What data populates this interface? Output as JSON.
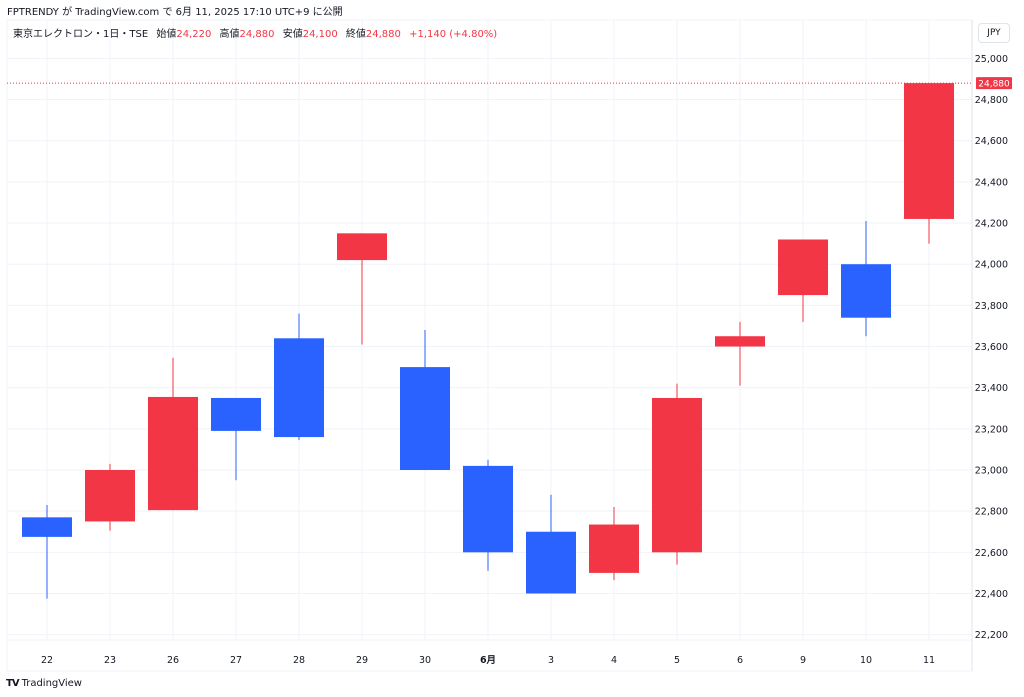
{
  "header": {
    "published": "FPTRENDY が TradingView.com で 6月 11, 2025 17:10 UTC+9 に公開"
  },
  "legend": {
    "symbol": "東京エレクトロン・1日・TSE",
    "open_label": "始値",
    "open": "24,220",
    "high_label": "高値",
    "high": "24,880",
    "low_label": "安値",
    "low": "24,100",
    "close_label": "終値",
    "close": "24,880",
    "change": "+1,140 (+4.80%)"
  },
  "currency": "JPY",
  "brand": {
    "logo": "TV",
    "name": "TradingView"
  },
  "chart_data": {
    "type": "candlestick",
    "categories": [
      "22",
      "23",
      "26",
      "27",
      "28",
      "29",
      "30",
      "6月",
      "3",
      "4",
      "5",
      "6",
      "9",
      "10",
      "11"
    ],
    "series": [
      {
        "open": [
          22770,
          22750,
          22805,
          23350,
          23640,
          24020,
          23500,
          23020,
          22700,
          22500,
          22600,
          23600,
          23850,
          24000,
          24220
        ],
        "high": [
          22830,
          23030,
          23545,
          23350,
          23760,
          24150,
          23680,
          23050,
          22880,
          22820,
          23420,
          23720,
          24120,
          24210,
          24880
        ],
        "low": [
          22375,
          22705,
          22805,
          22950,
          23145,
          23610,
          23000,
          22510,
          22400,
          22465,
          22540,
          23410,
          23720,
          23650,
          24100
        ],
        "close": [
          22675,
          23000,
          23355,
          23190,
          23160,
          24150,
          23000,
          22600,
          22400,
          22735,
          23350,
          23650,
          24120,
          23740,
          24880
        ]
      }
    ],
    "ylim": [
      22100,
      25080
    ],
    "yticks": [
      22200,
      22400,
      22600,
      22800,
      23000,
      23200,
      23400,
      23600,
      23800,
      24000,
      24200,
      24400,
      24600,
      24800,
      25000
    ],
    "ytick_labels": [
      "22,200",
      "22,400",
      "22,600",
      "22,800",
      "23,000",
      "23,200",
      "23,400",
      "23,600",
      "23,800",
      "24,000",
      "24,200",
      "24,400",
      "24,600",
      "24,800",
      "25,000"
    ],
    "last_price": 24880,
    "last_price_label": "24,880",
    "grid": true,
    "up_color": "#f23645",
    "down_color": "#2962ff"
  }
}
